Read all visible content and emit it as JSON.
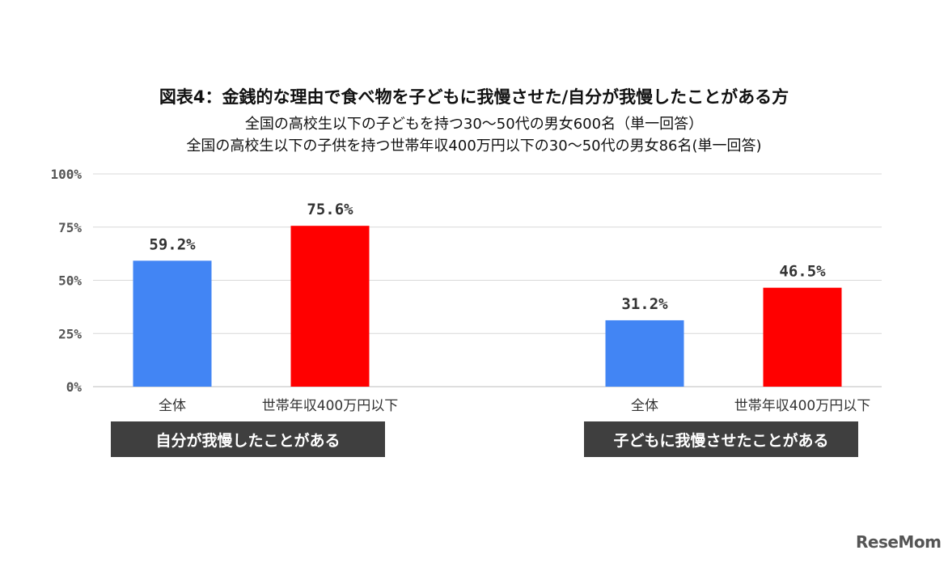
{
  "chart_data": {
    "type": "bar",
    "title": "図表4：金銭的な理由で食べ物を子どもに我慢させた/自分が我慢したことがある方",
    "subtitle_lines": [
      "全国の高校生以下の子どもを持つ30～50代の男女600名（単一回答）",
      "全国の高校生以下の子供を持つ世帯年収400万円以下の30～50代の男女86名(単一回答)"
    ],
    "y_ticks": [
      "0%",
      "25%",
      "50%",
      "75%",
      "100%"
    ],
    "ylim": [
      0,
      100
    ],
    "grid": true,
    "groups": [
      {
        "label": "自分が我慢したことがある",
        "bars": [
          {
            "category": "全体",
            "value": 59.2,
            "label": "59.2%",
            "color": "#4285f4"
          },
          {
            "category": "世帯年収400万円以下",
            "value": 75.6,
            "label": "75.6%",
            "color": "#ff0000"
          }
        ]
      },
      {
        "label": "子どもに我慢させたことがある",
        "bars": [
          {
            "category": "全体",
            "value": 31.2,
            "label": "31.2%",
            "color": "#4285f4"
          },
          {
            "category": "世帯年収400万円以下",
            "value": 46.5,
            "label": "46.5%",
            "color": "#ff0000"
          }
        ]
      }
    ]
  },
  "watermark": "ReseMom"
}
